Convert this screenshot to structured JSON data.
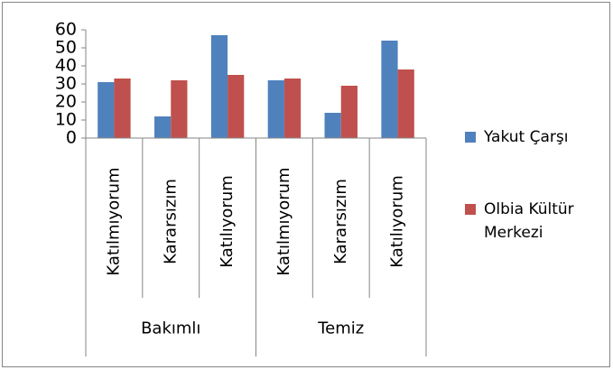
{
  "chart_data": {
    "type": "bar",
    "groups": [
      {
        "name": "Bakımlı",
        "categories": [
          "Katılmıyorum",
          "Kararsızım",
          "Katılıyorum"
        ]
      },
      {
        "name": "Temiz",
        "categories": [
          "Katılmıyorum",
          "Kararsızım",
          "Katılıyorum"
        ]
      }
    ],
    "series": [
      {
        "name": "Yakut Çarşı",
        "color": "#4f81bd",
        "values": [
          31,
          12,
          57,
          32,
          14,
          54
        ]
      },
      {
        "name": "Olbia Kültür Merkezi",
        "color": "#c0504d",
        "values": [
          33,
          32,
          35,
          33,
          29,
          38
        ]
      }
    ],
    "ylim": [
      0,
      60
    ],
    "yticks": [
      0,
      10,
      20,
      30,
      40,
      50,
      60
    ],
    "grid": false,
    "legend": "right"
  }
}
